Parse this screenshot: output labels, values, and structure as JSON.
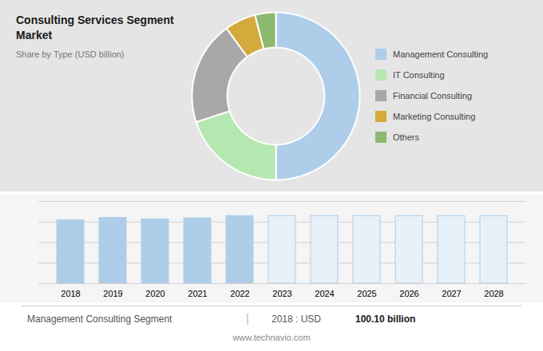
{
  "chart_data": [
    {
      "type": "donut",
      "title": "Consulting Services Segment Market",
      "subtitle": "Share by Type (USD billion)",
      "categories": [
        "Management Consulting",
        "IT Consulting",
        "Financial Consulting",
        "Marketing Consulting",
        "Others"
      ],
      "values": [
        50,
        20,
        20,
        6,
        4
      ],
      "colors": [
        "#aecde8",
        "#b5e8b0",
        "#a8a8a8",
        "#d4aa3c",
        "#8db870"
      ],
      "legend": "right"
    },
    {
      "type": "bar",
      "categories": [
        "2018",
        "2019",
        "2020",
        "2021",
        "2022",
        "2023",
        "2024",
        "2025",
        "2026",
        "2027",
        "2028"
      ],
      "values": [
        100.1,
        104.0,
        101.5,
        103.5,
        107.0,
        107.0,
        107.0,
        107.0,
        107.0,
        107.0,
        107.0
      ],
      "colors": [
        "#aecde8",
        "#aecde8",
        "#aecde8",
        "#aecde8",
        "#aecde8",
        "#e8f0f8",
        "#e8f0f8",
        "#e8f0f8",
        "#e8f0f8",
        "#e8f0f8",
        "#e8f0f8"
      ],
      "ylim": [
        0,
        130
      ],
      "yticks": [
        0,
        32.5,
        65,
        97.5,
        130
      ],
      "grid": true,
      "tick_labels": "x",
      "annotations": [
        "Management Consulting Segment",
        "|",
        "2018 : USD ",
        "100.10 billion",
        "www.technavio.com"
      ]
    }
  ]
}
